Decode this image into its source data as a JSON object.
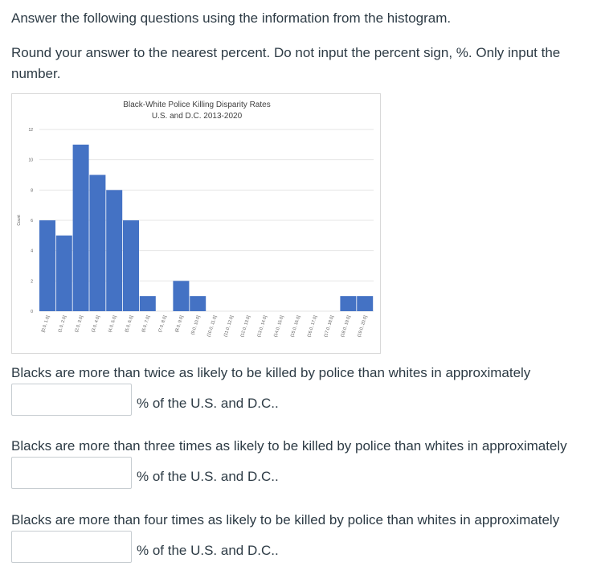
{
  "instructions": {
    "line1": "Answer the following questions using the information from the histogram.",
    "line2": "Round your answer to the nearest percent.  Do not input the percent sign, %.  Only input the number."
  },
  "chart_data": {
    "type": "bar",
    "title": "Black-White Police Killing Disparity Rates",
    "subtitle": "U.S. and D.C. 2013-2020",
    "xlabel": "",
    "ylabel": "Count",
    "ylim": [
      0,
      12
    ],
    "yticks": [
      "0",
      "2",
      "4",
      "6",
      "8",
      "10",
      "12"
    ],
    "grid": true,
    "bar_color": "#4472c4",
    "categories": [
      "[0.0, 1.0]",
      "(1.0, 2.0]",
      "(2.0, 3.0]",
      "(3.0, 4.0]",
      "(4.0, 5.0]",
      "(5.0, 6.0]",
      "(6.0, 7.0]",
      "(7.0, 8.0]",
      "(8.0, 9.0]",
      "(9.0, 10.0]",
      "(10.0, 11.0]",
      "(11.0, 12.0]",
      "(12.0, 13.0]",
      "(13.0, 14.0]",
      "(14.0, 15.0]",
      "(15.0, 16.0]",
      "(16.0, 17.0]",
      "(17.0, 18.0]",
      "(18.0, 19.0]",
      "(19.0, 20.0]"
    ],
    "values": [
      6,
      5,
      11,
      9,
      8,
      6,
      1,
      0,
      2,
      1,
      0,
      0,
      0,
      0,
      0,
      0,
      0,
      0,
      1,
      1
    ]
  },
  "questions": [
    {
      "text": "Blacks are more than twice as likely to be killed by police than whites in approximately",
      "value": "",
      "suffix": "% of the U.S. and D.C.."
    },
    {
      "text": "Blacks are more than three times as likely to be killed by police than whites in approximately",
      "value": "",
      "suffix": "% of the U.S. and D.C.."
    },
    {
      "text": "Blacks are more than four times as likely to be killed by police than whites in approximately",
      "value": "",
      "suffix": "% of the U.S. and D.C.."
    }
  ]
}
